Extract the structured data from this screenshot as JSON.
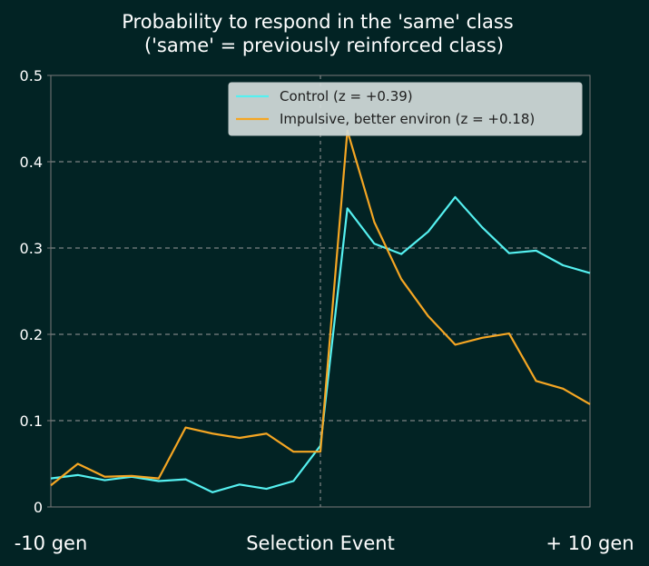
{
  "chart_data": {
    "type": "line",
    "title_line1": "Probability to respond in the 'same' class",
    "title_line2": "('same' = previously reinforced class)",
    "xlabel": "",
    "ylabel": "",
    "x_tick_labels": [
      "-10 gen",
      "Selection Event",
      "+ 10 gen"
    ],
    "xlim": [
      -10,
      10
    ],
    "ylim": [
      0,
      0.5
    ],
    "y_ticks": [
      0,
      0.1,
      0.2,
      0.3,
      0.4,
      0.5
    ],
    "y_tick_labels": [
      "0",
      "0.1",
      "0.2",
      "0.3",
      "0.4",
      "0.5"
    ],
    "grid": "horizontal dashed",
    "event_line_x": 0,
    "legend_position": "top-right",
    "x": [
      -10,
      -9,
      -8,
      -7,
      -6,
      -5,
      -4,
      -3,
      -2,
      -1,
      0,
      1,
      2,
      3,
      4,
      5,
      6,
      7,
      8,
      9,
      10
    ],
    "series": [
      {
        "name": "Control (z = +0.39)",
        "color": "#55f0f0",
        "values": [
          0.033,
          0.037,
          0.031,
          0.035,
          0.03,
          0.032,
          0.017,
          0.026,
          0.021,
          0.03,
          0.071,
          0.346,
          0.305,
          0.293,
          0.319,
          0.359,
          0.324,
          0.294,
          0.297,
          0.28,
          0.271
        ]
      },
      {
        "name": "Impulsive, better environ (z = +0.18)",
        "color": "#f5a623",
        "values": [
          0.025,
          0.05,
          0.035,
          0.036,
          0.033,
          0.092,
          0.085,
          0.08,
          0.085,
          0.064,
          0.064,
          0.436,
          0.33,
          0.264,
          0.221,
          0.188,
          0.196,
          0.201,
          0.146,
          0.137,
          0.119
        ]
      }
    ]
  },
  "colors": {
    "background": "#022324",
    "text": "#ffffff",
    "grid": "#9a9a9a",
    "legend_background": "#d3dcdb",
    "legend_text": "#1e1e1e"
  }
}
